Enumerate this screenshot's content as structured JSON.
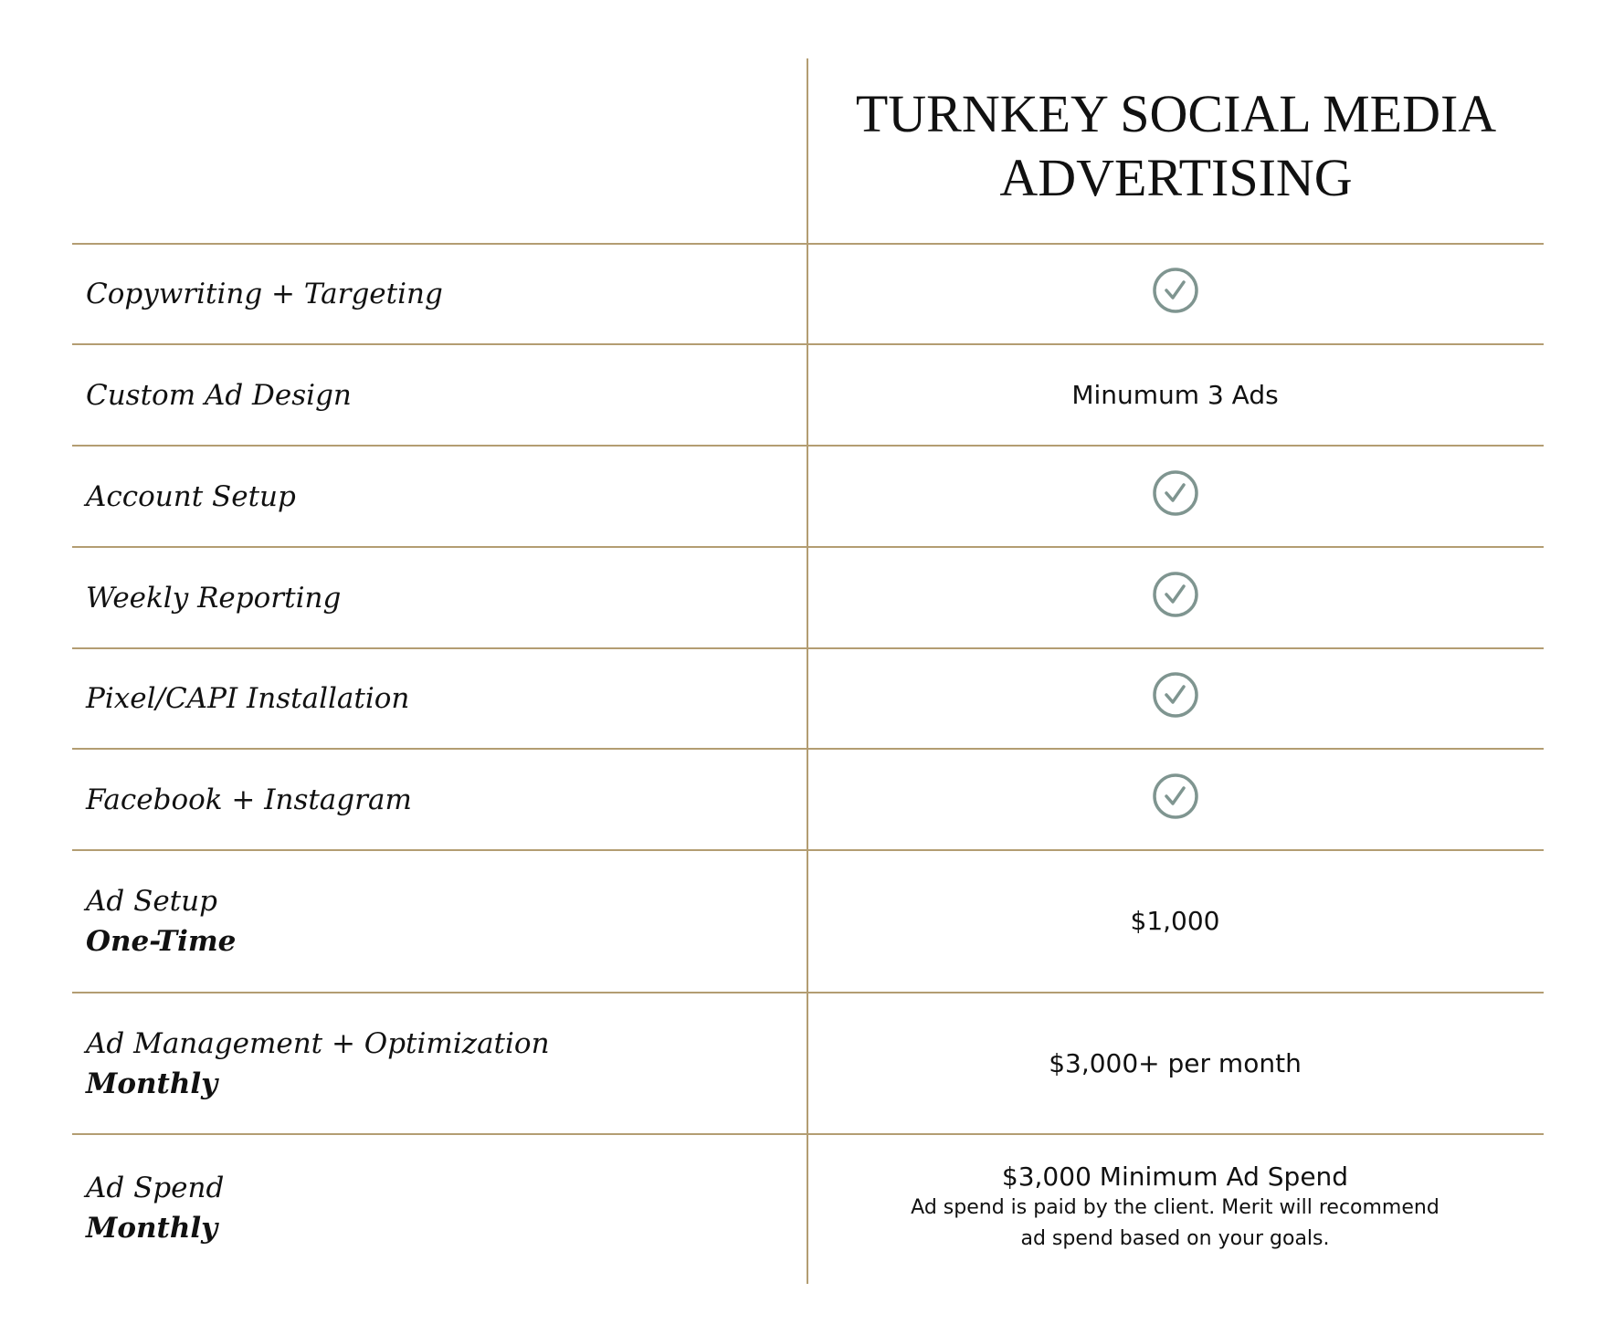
{
  "header": {
    "title_line1": "TURNKEY SOCIAL MEDIA",
    "title_line2": "ADVERTISING"
  },
  "colors": {
    "rule": "#b39d72",
    "check": "#7f9590"
  },
  "rows": [
    {
      "label": "Copywriting + Targeting",
      "icon": "check-circle-icon"
    },
    {
      "label": "Custom Ad Design",
      "value": "Minumum 3 Ads"
    },
    {
      "label": "Account Setup",
      "icon": "check-circle-icon"
    },
    {
      "label": "Weekly Reporting",
      "icon": "check-circle-icon"
    },
    {
      "label": "Pixel/CAPI Installation",
      "icon": "check-circle-icon"
    },
    {
      "label": "Facebook + Instagram",
      "icon": "check-circle-icon"
    },
    {
      "label": "Ad Setup",
      "label_bold": "One-Time",
      "value": "$1,000"
    },
    {
      "label": "Ad Management + Optimization",
      "label_bold": "Monthly",
      "value": "$3,000+ per month"
    },
    {
      "label": "Ad Spend",
      "label_bold": "Monthly",
      "value": "$3,000 Minimum Ad Spend",
      "note_line1": "Ad spend is paid by the client. Merit will recommend",
      "note_line2": "ad spend based on your goals."
    }
  ]
}
